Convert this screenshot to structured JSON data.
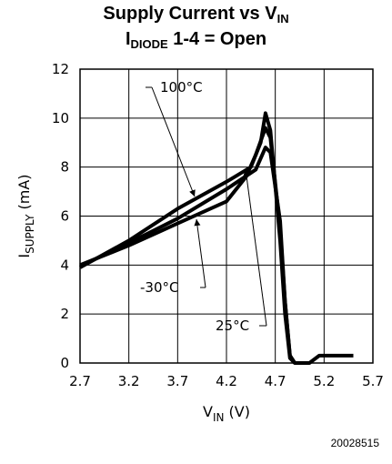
{
  "chart_data": {
    "type": "line",
    "title_line1": {
      "text": "Supply Current vs V",
      "sub": "IN"
    },
    "title_line2": {
      "pre": "I",
      "sub": "DIODE",
      "post": " 1-4 = Open"
    },
    "xlabel": {
      "main": "V",
      "sub": "IN",
      "unit": "  (V)"
    },
    "ylabel": {
      "main": "I",
      "sub": "SUPPLY",
      "unit": "  (mA)"
    },
    "xlim": [
      2.7,
      5.7
    ],
    "ylim": [
      0,
      12
    ],
    "xticks": [
      2.7,
      3.2,
      3.7,
      4.2,
      4.7,
      5.2,
      5.7
    ],
    "xtick_labels": [
      "2.7",
      "3.2",
      "3.7",
      "4.2",
      "4.7",
      "5.2",
      "5.7"
    ],
    "yticks": [
      0,
      2,
      4,
      6,
      8,
      10,
      12
    ],
    "ytick_labels": [
      "0",
      "2",
      "4",
      "6",
      "8",
      "10",
      "12"
    ],
    "grid": true,
    "series": [
      {
        "name": "100°C",
        "x": [
          2.7,
          3.2,
          3.7,
          4.2,
          4.45,
          4.55,
          4.6,
          4.65,
          4.75,
          4.8,
          4.85,
          4.9,
          5.05,
          5.15,
          5.5
        ],
        "y": [
          3.9,
          5.0,
          6.3,
          7.4,
          8.0,
          9.0,
          10.2,
          9.5,
          5.0,
          2.0,
          0.2,
          0.0,
          0.0,
          0.3,
          0.3
        ]
      },
      {
        "name": "-30°C",
        "x": [
          2.7,
          3.2,
          3.7,
          4.2,
          4.4,
          4.5,
          4.6,
          4.65,
          4.75,
          4.8,
          4.85,
          4.9
        ],
        "y": [
          4.0,
          4.8,
          5.7,
          6.6,
          7.6,
          8.5,
          9.6,
          9.2,
          5.5,
          2.5,
          0.3,
          0.0
        ]
      },
      {
        "name": "25°C",
        "x": [
          2.7,
          3.2,
          3.7,
          4.2,
          4.5,
          4.6,
          4.65,
          4.75,
          4.8,
          4.85,
          4.9
        ],
        "y": [
          3.95,
          4.9,
          5.9,
          7.1,
          7.9,
          8.8,
          8.6,
          5.8,
          2.5,
          0.3,
          0.0
        ]
      }
    ],
    "annotations": [
      {
        "text": "100°C",
        "series": "100°C"
      },
      {
        "text": "-30°C",
        "series": "-30°C"
      },
      {
        "text": "25°C",
        "series": "25°C"
      }
    ]
  },
  "figure_id": "20028515"
}
